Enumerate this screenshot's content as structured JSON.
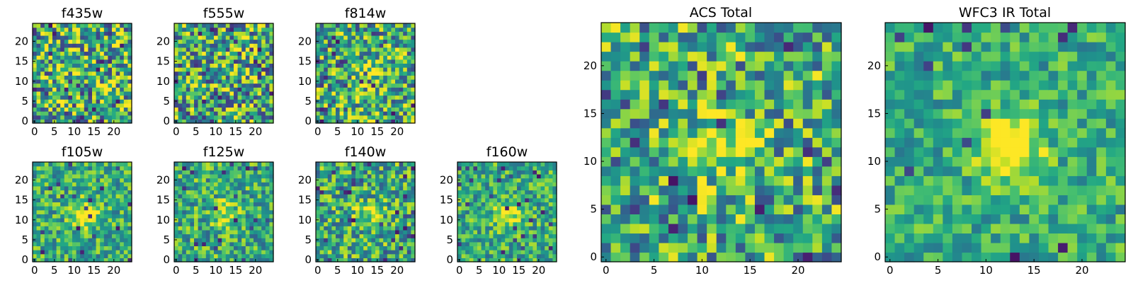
{
  "figure": {
    "description_type": "heatmap grid of 25x25 pixel cutouts",
    "colormap": "viridis"
  },
  "chart_data": [
    {
      "type": "heatmap",
      "title": "f435w",
      "ticks": [
        "0",
        "5",
        "10",
        "15",
        "20"
      ],
      "yticks": [
        "0",
        "5",
        "10",
        "15",
        "20"
      ],
      "grid_size": 25,
      "seed": 11,
      "noise": 0.9,
      "blob": 0.0,
      "dark_frac": 0.05
    },
    {
      "type": "heatmap",
      "title": "f555w",
      "ticks": [
        "0",
        "5",
        "10",
        "15",
        "20"
      ],
      "yticks": [
        "0",
        "5",
        "10",
        "15",
        "20"
      ],
      "grid_size": 25,
      "seed": 23,
      "noise": 0.9,
      "blob": 0.1,
      "dark_frac": 0.05
    },
    {
      "type": "heatmap",
      "title": "f814w",
      "ticks": [
        "0",
        "5",
        "10",
        "15",
        "20"
      ],
      "yticks": [
        "0",
        "5",
        "10",
        "15",
        "20"
      ],
      "grid_size": 25,
      "seed": 37,
      "noise": 0.8,
      "blob": 0.6,
      "dark_frac": 0.05
    },
    {
      "type": "heatmap",
      "title": "f105w",
      "ticks": [
        "0",
        "5",
        "10",
        "15",
        "20"
      ],
      "yticks": [
        "0",
        "5",
        "10",
        "15",
        "20"
      ],
      "grid_size": 25,
      "seed": 41,
      "noise": 0.55,
      "blob": 1.0,
      "dark_frac": 0.03
    },
    {
      "type": "heatmap",
      "title": "f125w",
      "ticks": [
        "0",
        "5",
        "10",
        "15",
        "20"
      ],
      "yticks": [
        "0",
        "5",
        "10",
        "15",
        "20"
      ],
      "grid_size": 25,
      "seed": 53,
      "noise": 0.6,
      "blob": 0.7,
      "dark_frac": 0.04
    },
    {
      "type": "heatmap",
      "title": "f140w",
      "ticks": [
        "0",
        "5",
        "10",
        "15",
        "20"
      ],
      "yticks": [
        "0",
        "5",
        "10",
        "15",
        "20"
      ],
      "grid_size": 25,
      "seed": 67,
      "noise": 0.65,
      "blob": 0.6,
      "dark_frac": 0.05
    },
    {
      "type": "heatmap",
      "title": "f160w",
      "ticks": [
        "0",
        "5",
        "10",
        "15",
        "20"
      ],
      "yticks": [
        "0",
        "5",
        "10",
        "15",
        "20"
      ],
      "grid_size": 25,
      "seed": 71,
      "noise": 0.55,
      "blob": 0.9,
      "dark_frac": 0.04
    },
    {
      "type": "heatmap",
      "title": "ACS Total",
      "ticks": [
        "0",
        "5",
        "10",
        "15",
        "20"
      ],
      "yticks": [
        "0",
        "5",
        "10",
        "15",
        "20"
      ],
      "grid_size": 25,
      "seed": 83,
      "noise": 0.75,
      "blob": 0.9,
      "dark_frac": 0.04
    },
    {
      "type": "heatmap",
      "title": "WFC3 IR Total",
      "ticks": [
        "0",
        "5",
        "10",
        "15",
        "20"
      ],
      "yticks": [
        "0",
        "5",
        "10",
        "15",
        "20"
      ],
      "grid_size": 25,
      "seed": 97,
      "noise": 0.45,
      "blob": 1.3,
      "dark_frac": 0.03
    }
  ]
}
